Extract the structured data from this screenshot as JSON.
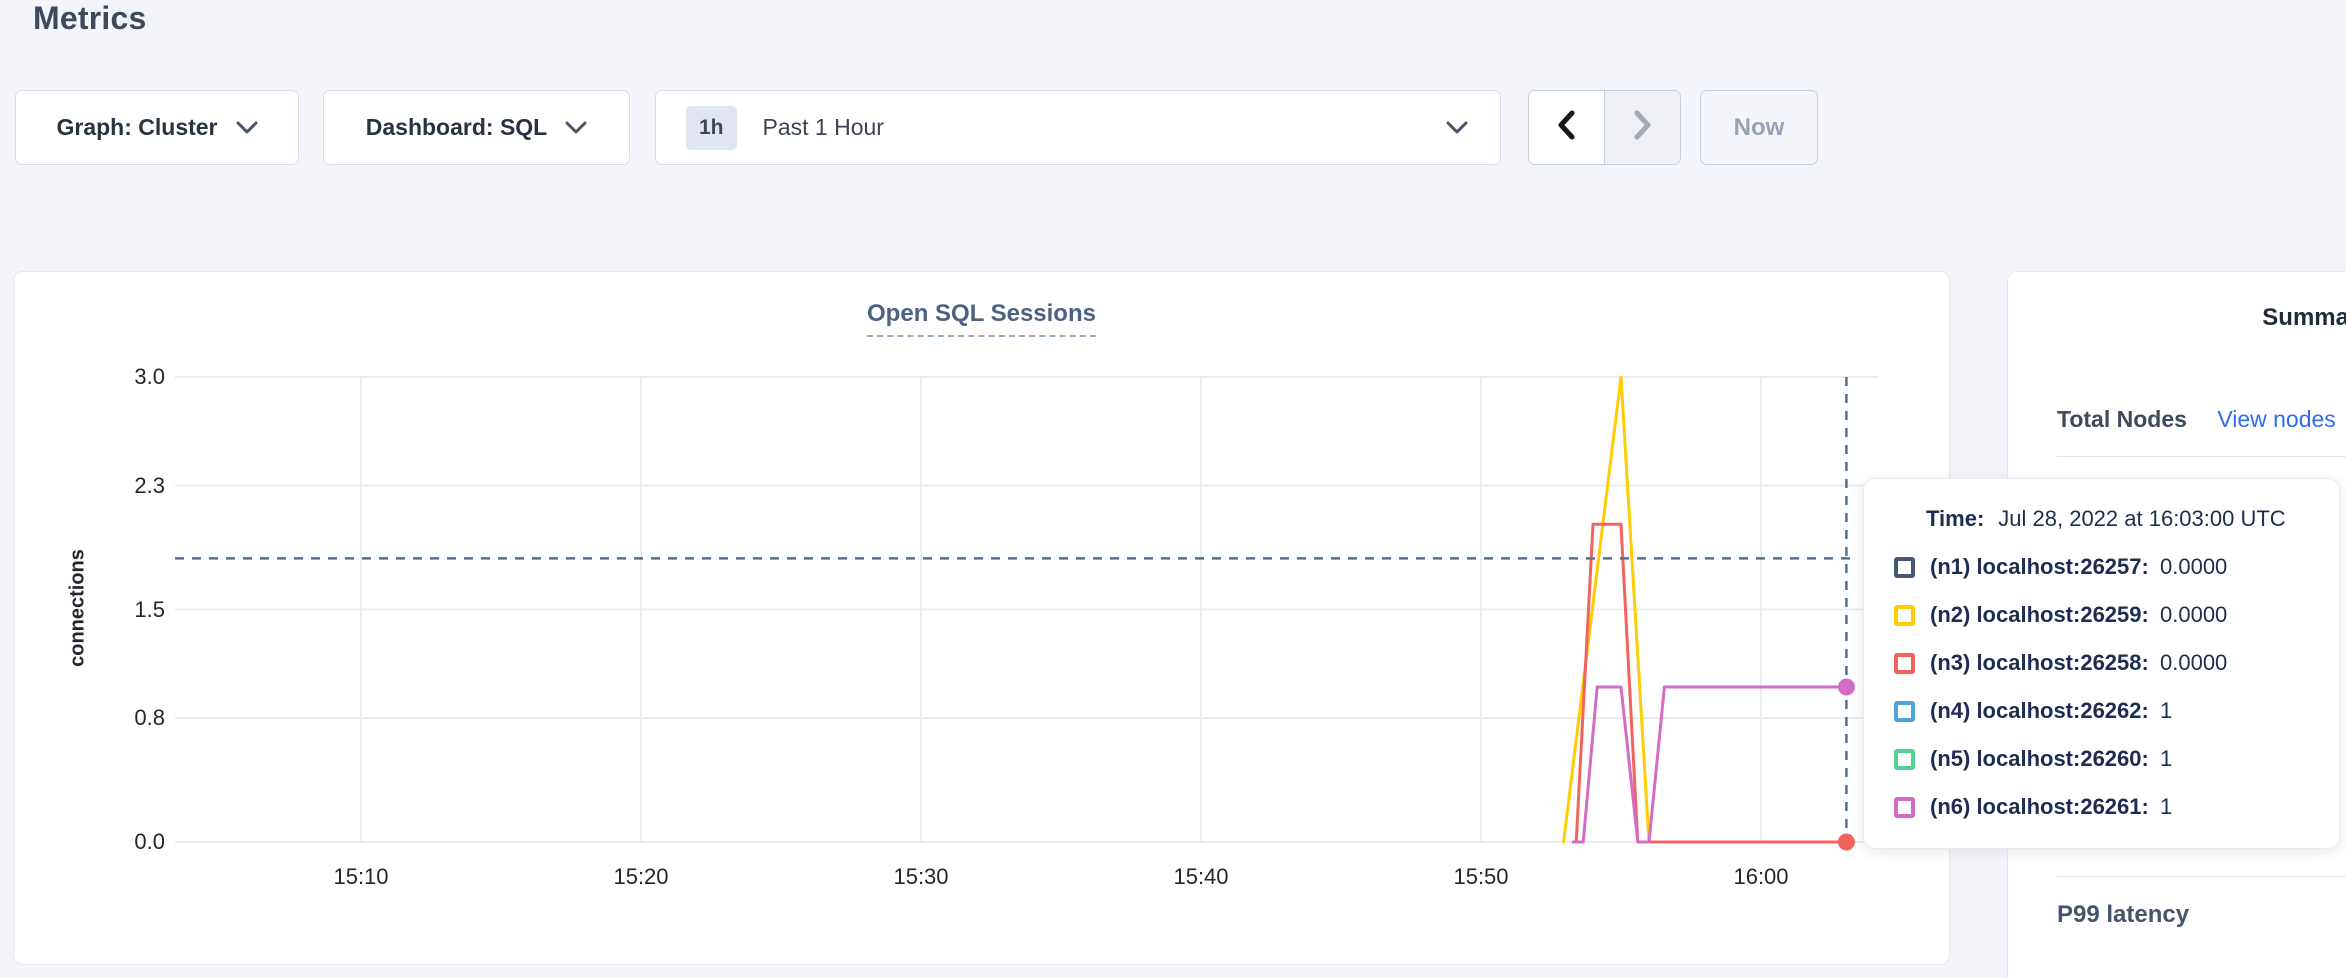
{
  "page": {
    "title": "Metrics"
  },
  "toolbar": {
    "graph_dropdown_label": "Graph: Cluster",
    "dashboard_dropdown_label": "Dashboard: SQL",
    "range_badge": "1h",
    "range_label": "Past 1 Hour",
    "now_button_label": "Now"
  },
  "sidebar": {
    "heading": "Summary",
    "total_nodes_label": "Total Nodes",
    "view_nodes_link": "View nodes",
    "p99_label": "P99 latency"
  },
  "tooltip": {
    "time_label": "Time:",
    "time_value": "Jul 28, 2022 at 16:03:00 UTC",
    "rows": [
      {
        "node": "(n1) localhost:26257:",
        "value": "0.0000",
        "color": "#475872"
      },
      {
        "node": "(n2) localhost:26259:",
        "value": "0.0000",
        "color": "#ffcd02"
      },
      {
        "node": "(n3) localhost:26258:",
        "value": "0.0000",
        "color": "#f2635e"
      },
      {
        "node": "(n4) localhost:26262:",
        "value": "1",
        "color": "#52a2dc"
      },
      {
        "node": "(n5) localhost:26260:",
        "value": "1",
        "color": "#4fd392"
      },
      {
        "node": "(n6) localhost:26261:",
        "value": "1",
        "color": "#d26cc4"
      }
    ]
  },
  "chart_data": {
    "type": "line",
    "title": "Open SQL Sessions",
    "ylabel": "connections",
    "ylim": [
      0,
      3
    ],
    "grid": true,
    "legend_position": "hover-tooltip",
    "x_unit": "minutes after 15:00 on Jul 28, 2022 UTC",
    "yticks": [
      {
        "label": "3.0",
        "value": 3.0
      },
      {
        "label": "2.3",
        "value": 2.3
      },
      {
        "label": "1.5",
        "value": 1.5
      },
      {
        "label": "0.8",
        "value": 0.8
      },
      {
        "label": "0.0",
        "value": 0.0
      }
    ],
    "xticks": [
      {
        "label": "15:10",
        "minute": 10
      },
      {
        "label": "15:20",
        "minute": 20
      },
      {
        "label": "15:30",
        "minute": 30
      },
      {
        "label": "15:40",
        "minute": 40
      },
      {
        "label": "15:50",
        "minute": 50
      },
      {
        "label": "16:00",
        "minute": 60
      }
    ],
    "series": [
      {
        "name": "(n1) localhost:26257",
        "color": "#475872",
        "points": [
          [
            56.2,
            0
          ],
          [
            63.05,
            0
          ]
        ]
      },
      {
        "name": "(n2) localhost:26259",
        "color": "#ffcd02",
        "points": [
          [
            52.95,
            0
          ],
          [
            55.0,
            3.0
          ],
          [
            56.0,
            0
          ],
          [
            63.05,
            0
          ]
        ]
      },
      {
        "name": "(n3) localhost:26258",
        "color": "#f2635e",
        "points": [
          [
            53.4,
            0
          ],
          [
            54.0,
            2.05
          ],
          [
            55.0,
            2.05
          ],
          [
            55.6,
            0
          ],
          [
            63.05,
            0
          ]
        ]
      },
      {
        "name": "(n4) localhost:26262",
        "color": "#52a2dc",
        "points": [
          [
            56.55,
            1.0
          ],
          [
            63.05,
            1.0
          ]
        ]
      },
      {
        "name": "(n5) localhost:26260",
        "color": "#4fd392",
        "points": [
          [
            56.55,
            1.0
          ],
          [
            63.05,
            1.0
          ]
        ]
      },
      {
        "name": "(n6) localhost:26261",
        "color": "#d26cc4",
        "points": [
          [
            53.3,
            0
          ],
          [
            53.65,
            0
          ],
          [
            54.15,
            1.0
          ],
          [
            55.0,
            1.0
          ],
          [
            55.6,
            0
          ],
          [
            56.0,
            0
          ],
          [
            56.55,
            1.0
          ],
          [
            63.05,
            1.0
          ]
        ]
      }
    ],
    "end_markers": [
      {
        "series": "(n3) localhost:26258",
        "minute": 63.05,
        "value": 0,
        "color": "#f2635e"
      },
      {
        "series": "(n6) localhost:26261",
        "minute": 63.05,
        "value": 1,
        "color": "#d26cc4"
      }
    ],
    "crosshair": {
      "minute": 63.05,
      "value": 1.83,
      "time_label": "16:03:00"
    }
  }
}
